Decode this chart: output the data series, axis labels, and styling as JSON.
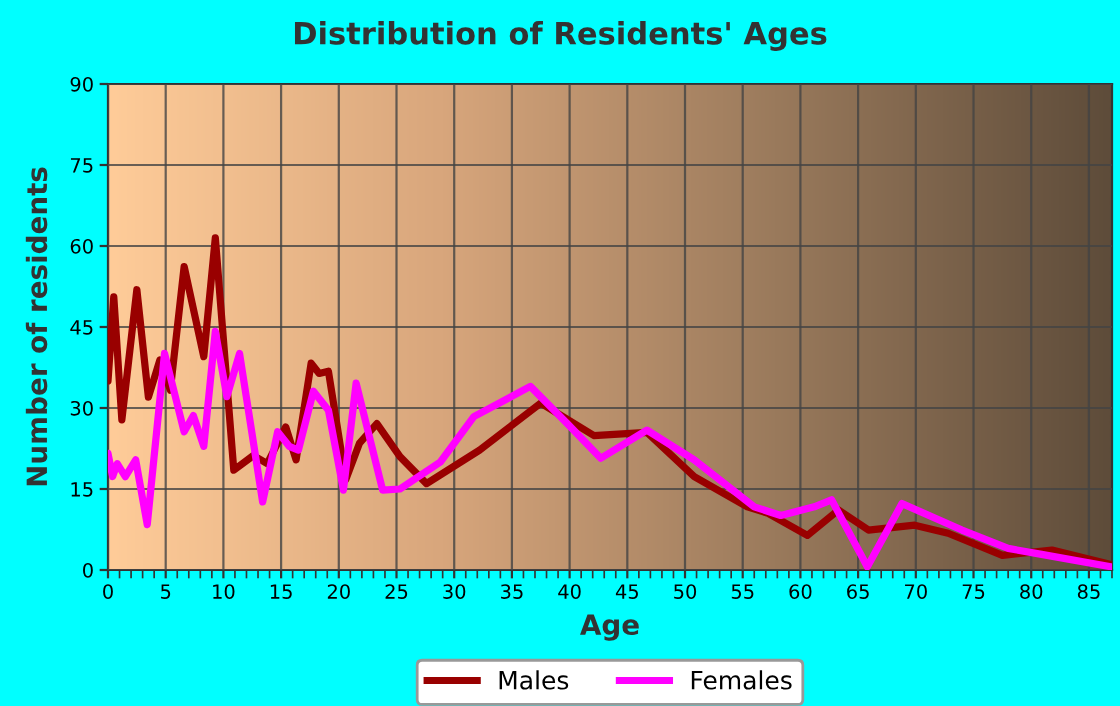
{
  "chart_data": {
    "type": "line",
    "title": "Distribution of Residents' Ages",
    "xlabel": "Age",
    "ylabel": "Number of residents",
    "xlim": [
      0,
      87
    ],
    "xticks": [
      0,
      5,
      10,
      15,
      20,
      25,
      30,
      35,
      40,
      45,
      50,
      55,
      60,
      65,
      70,
      75,
      80,
      85
    ],
    "ylim": [
      0,
      90
    ],
    "yticks": [
      0,
      15,
      30,
      45,
      60,
      75,
      90
    ],
    "grid": true,
    "legend": "bottom",
    "marker": "none",
    "line_style": "solid",
    "series": [
      {
        "name": "Males",
        "color": "#990000",
        "x": [
          0,
          0.5,
          1.2,
          2.5,
          3.5,
          4.5,
          5.4,
          6.6,
          8.3,
          9.3,
          10.9,
          12.6,
          13.8,
          15.4,
          16.3,
          17.6,
          18.3,
          19.1,
          20.6,
          21.8,
          23.3,
          25.3,
          27.6,
          32.2,
          37.5,
          42.1,
          46.7,
          50.8,
          55.4,
          57.2,
          60.6,
          63.3,
          65.9,
          69.9,
          72.8,
          77.5,
          81.8,
          86.9
        ],
        "values": [
          35,
          50.6,
          27.8,
          51.9,
          32,
          38.9,
          33.3,
          56.2,
          39.5,
          61.5,
          18.5,
          21.2,
          19.7,
          26.5,
          20.4,
          38.3,
          36.4,
          36.8,
          16.7,
          23.5,
          27.1,
          21,
          16,
          22.2,
          30.9,
          24.9,
          25.5,
          17.3,
          11.7,
          10.5,
          6.4,
          11.1,
          7.4,
          8.3,
          6.8,
          2.7,
          3.7,
          1
        ]
      },
      {
        "name": "Females",
        "color": "#ff00ff",
        "x": [
          0,
          0.4,
          0.8,
          1.5,
          2.4,
          3.4,
          4.9,
          6.6,
          7.4,
          8.3,
          9.3,
          10.3,
          11.4,
          13.4,
          14.7,
          15.7,
          16.5,
          17.8,
          19.1,
          20.4,
          21.5,
          23.8,
          25.3,
          28.8,
          31.7,
          36.6,
          39.8,
          42.7,
          46.7,
          50.8,
          56,
          58.3,
          61.2,
          62.7,
          65.8,
          68.8,
          74,
          78,
          80.9,
          86.9
        ],
        "values": [
          21.6,
          17.3,
          19.7,
          17.3,
          20.4,
          8.4,
          40.1,
          25.6,
          28.6,
          22.9,
          44.2,
          32.1,
          40.1,
          12.6,
          25.6,
          22.9,
          22.2,
          33.1,
          29.6,
          14.8,
          34.6,
          14.8,
          15,
          20,
          28.4,
          34,
          27.1,
          20.7,
          25.9,
          20.4,
          11.7,
          10.1,
          11.7,
          13,
          0.6,
          12.3,
          7.4,
          4,
          2.9,
          0.6
        ]
      }
    ]
  }
}
